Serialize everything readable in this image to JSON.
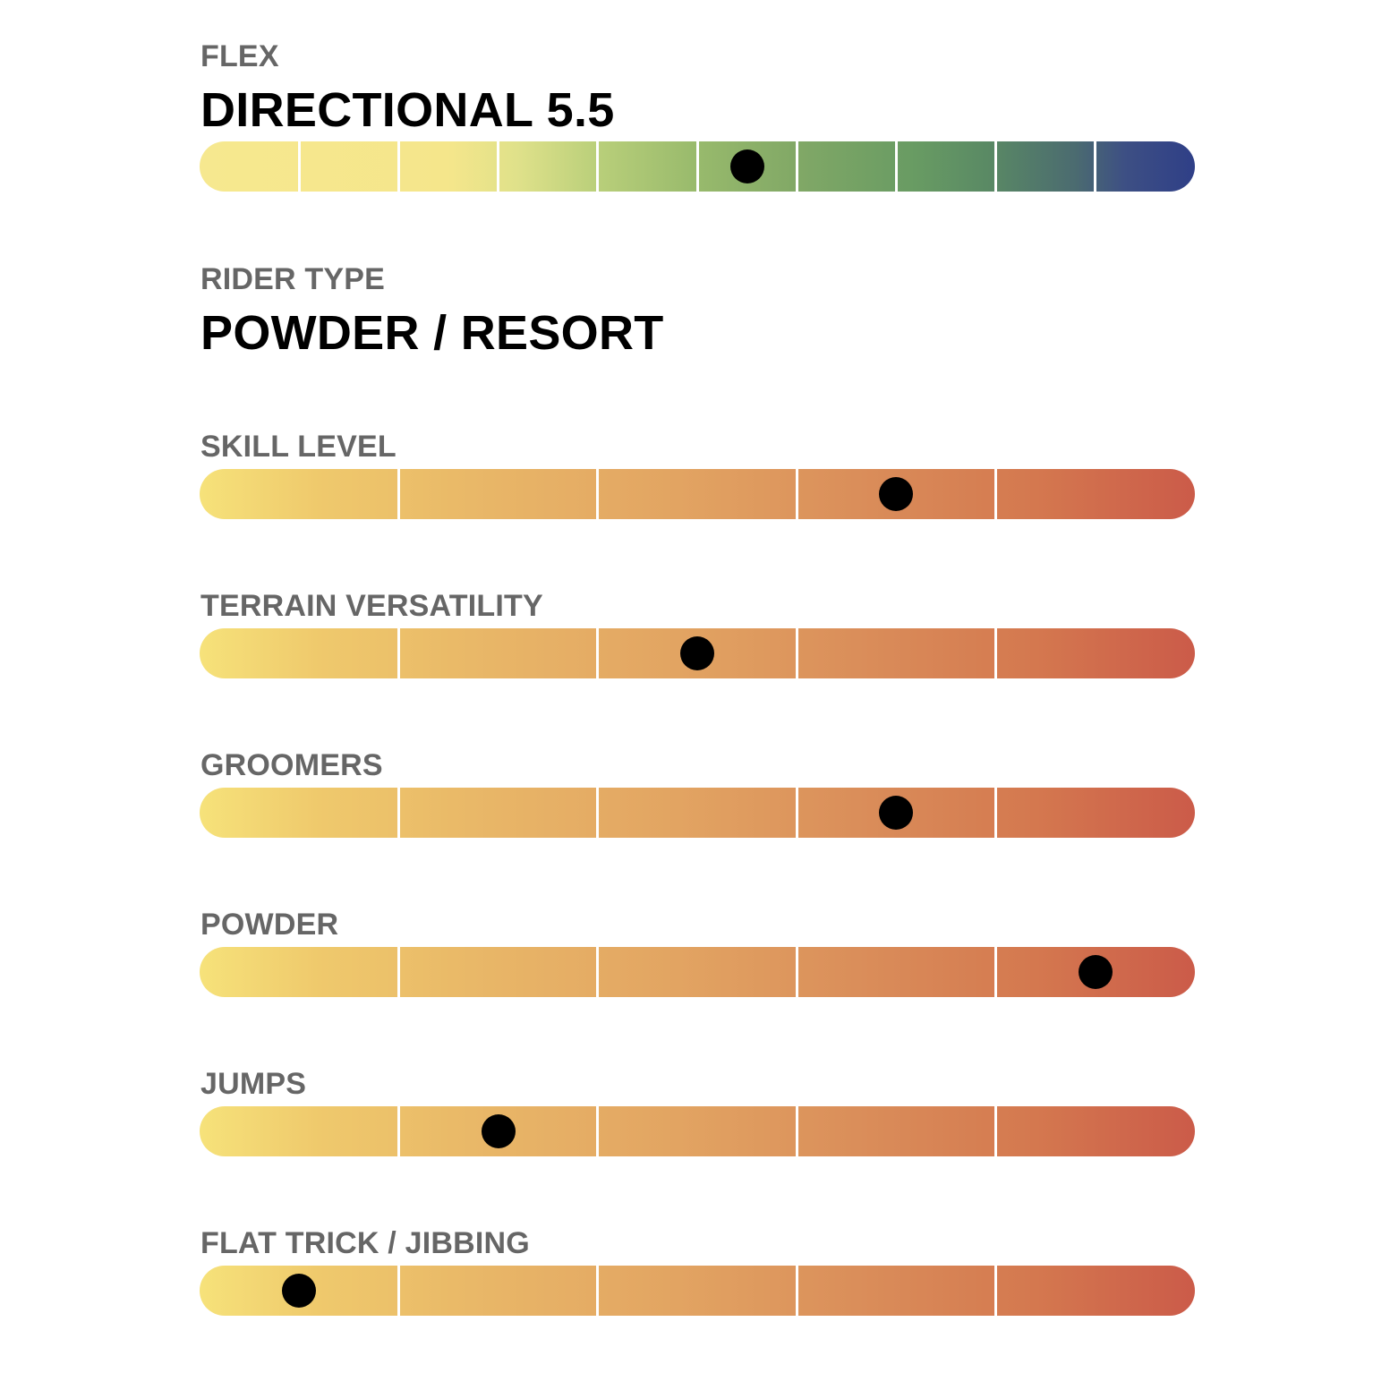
{
  "flex": {
    "label": "FLEX",
    "value": "DIRECTIONAL 5.5",
    "level": 5.5,
    "segments": 10
  },
  "rider_type": {
    "label": "RIDER TYPE",
    "value": "POWDER / RESORT"
  },
  "ratings": [
    {
      "label": "SKILL LEVEL",
      "level": 3.5,
      "segments": 5
    },
    {
      "label": "TERRAIN VERSATILITY",
      "level": 2.5,
      "segments": 5
    },
    {
      "label": "GROOMERS",
      "level": 3.5,
      "segments": 5
    },
    {
      "label": "POWDER",
      "level": 4.5,
      "segments": 5
    },
    {
      "label": "JUMPS",
      "level": 1.5,
      "segments": 5
    },
    {
      "label": "FLAT TRICK / JIBBING",
      "level": 0.5,
      "segments": 5
    }
  ],
  "colors": {
    "label": "#666666",
    "value": "#000000",
    "marker": "#000000"
  }
}
